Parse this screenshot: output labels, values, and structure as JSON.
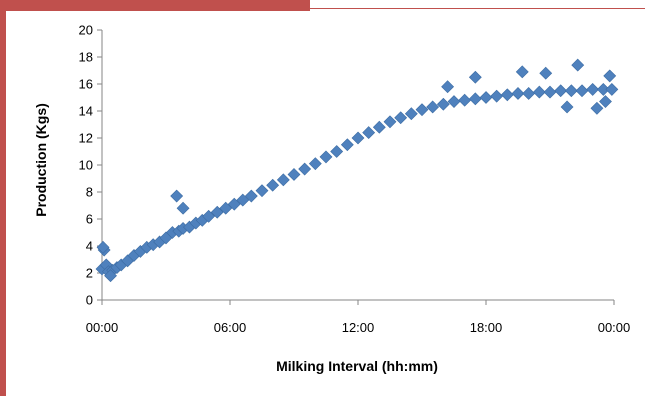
{
  "frame": {
    "accent_color": "#c0504d"
  },
  "chart_data": {
    "type": "scatter",
    "title": "",
    "xlabel": "Milking Interval (hh:mm)",
    "ylabel": "Production (Kgs)",
    "x_unit": "hours",
    "xlim": [
      0,
      24
    ],
    "ylim": [
      0,
      20
    ],
    "x_ticks": [
      0,
      6,
      12,
      18,
      24
    ],
    "x_tick_labels": [
      "00:00",
      "06:00",
      "12:00",
      "18:00",
      "00:00"
    ],
    "y_ticks": [
      0,
      2,
      4,
      6,
      8,
      10,
      12,
      14,
      16,
      18,
      20
    ],
    "y_tick_labels": [
      "0",
      "2",
      "4",
      "6",
      "8",
      "10",
      "12",
      "14",
      "16",
      "18",
      "20"
    ],
    "grid": false,
    "legend": "none",
    "marker": "diamond",
    "color": "#4f81bd",
    "series": [
      {
        "x": [
          0.0,
          0.1,
          0.2,
          0.3,
          0.5,
          0.7,
          0.9,
          1.2,
          1.5,
          1.8,
          2.1,
          2.4,
          2.7,
          3.0,
          3.3,
          3.6,
          3.8,
          4.1,
          4.4,
          4.7,
          5.0,
          5.4,
          5.8,
          6.2,
          6.6,
          7.0,
          7.5,
          8.0,
          8.5,
          9.0,
          9.5,
          10.0,
          10.5,
          11.0,
          11.5,
          12.0,
          12.5,
          13.0,
          13.5,
          14.0,
          14.5,
          15.0,
          15.5,
          16.0,
          16.5,
          17.0,
          17.5,
          18.0,
          18.5,
          19.0,
          19.5,
          20.0,
          20.5,
          21.0,
          21.5,
          22.0,
          22.5,
          23.0,
          23.5,
          23.9,
          0.05,
          0.4,
          3.5,
          3.8,
          17.5,
          20.8,
          22.3,
          23.2,
          23.8,
          23.6,
          21.8,
          16.2,
          19.7
        ],
        "y": [
          2.3,
          3.7,
          2.6,
          2.1,
          2.2,
          2.4,
          2.6,
          2.9,
          3.3,
          3.6,
          3.9,
          4.1,
          4.3,
          4.6,
          5.0,
          5.1,
          5.3,
          5.4,
          5.7,
          5.9,
          6.2,
          6.5,
          6.8,
          7.1,
          7.4,
          7.7,
          8.1,
          8.5,
          8.9,
          9.3,
          9.7,
          10.1,
          10.6,
          11.0,
          11.5,
          12.0,
          12.4,
          12.8,
          13.2,
          13.5,
          13.8,
          14.1,
          14.3,
          14.5,
          14.7,
          14.8,
          14.9,
          15.0,
          15.1,
          15.2,
          15.3,
          15.3,
          15.4,
          15.4,
          15.5,
          15.5,
          15.5,
          15.6,
          15.6,
          15.6,
          3.9,
          1.8,
          7.7,
          6.8,
          16.5,
          16.8,
          17.4,
          14.2,
          16.6,
          14.7,
          14.3,
          15.8,
          16.9
        ]
      }
    ]
  }
}
